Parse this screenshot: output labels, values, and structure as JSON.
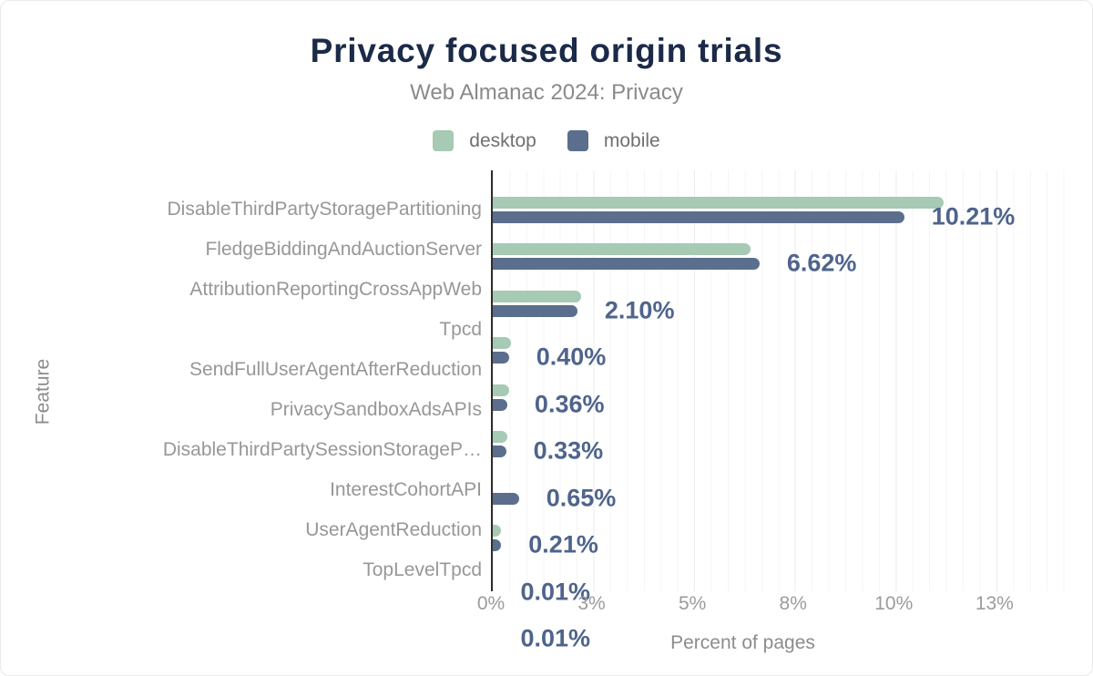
{
  "chart": {
    "title": "Privacy focused origin trials",
    "subtitle": "Web Almanac 2024: Privacy",
    "legend": [
      {
        "label": "desktop",
        "color": "#a6cab4"
      },
      {
        "label": "mobile",
        "color": "#5c6e8d"
      }
    ],
    "x_axis_title": "Percent of pages",
    "y_axis_title": "Feature"
  },
  "chart_data": {
    "type": "bar",
    "orientation": "horizontal",
    "title": "Privacy focused origin trials",
    "subtitle": "Web Almanac 2024: Privacy",
    "xlabel": "Percent of pages",
    "ylabel": "Feature",
    "xlim": [
      0,
      14.2
    ],
    "grid": true,
    "legend_position": "top",
    "xticks": {
      "values": [
        0,
        2.5,
        5,
        7.5,
        10,
        12.5
      ],
      "labels": [
        "0%",
        "3%",
        "5%",
        "8%",
        "10%",
        "13%"
      ]
    },
    "categories": [
      "DisableThirdPartyStoragePartitioning",
      "FledgeBiddingAndAuctionServer",
      "AttributionReportingCrossAppWeb",
      "Tpcd",
      "SendFullUserAgentAfterReduction",
      "PrivacySandboxAdsAPIs",
      "DisableThirdPartySessionStorageP…",
      "InterestCohortAPI",
      "UserAgentReduction",
      "TopLevelTpcd"
    ],
    "series": [
      {
        "name": "desktop",
        "color": "#a6cab4",
        "values": [
          11.2,
          6.4,
          2.2,
          0.45,
          0.4,
          0.36,
          0,
          0.2,
          0.01,
          0.01
        ]
      },
      {
        "name": "mobile",
        "color": "#5c6e8d",
        "values": [
          10.21,
          6.62,
          2.1,
          0.4,
          0.36,
          0.33,
          0.65,
          0.21,
          0.01,
          0.01
        ]
      }
    ],
    "annotations": [
      "10.21%",
      "6.62%",
      "2.10%",
      "0.40%",
      "0.36%",
      "0.33%",
      "0.65%",
      "0.21%",
      "0.01%",
      "0.01%"
    ]
  }
}
